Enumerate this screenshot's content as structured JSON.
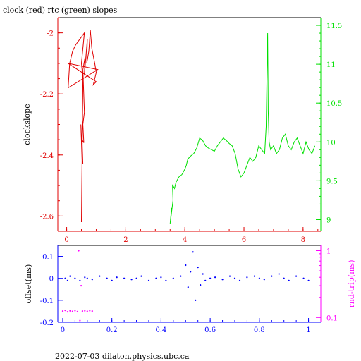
{
  "page": {
    "title": "clock (red) rtc (green) slopes",
    "footer": "2022-07-03 dilaton.physics.ubc.ca"
  },
  "chart_data": [
    {
      "type": "line",
      "title": "clock (red) rtc (green) slopes",
      "ylabel": "clockslope",
      "xlim": [
        -0.3,
        8.6
      ],
      "ylim": [
        -2.65,
        -1.95
      ],
      "y2lim": [
        8.85,
        11.6
      ],
      "xticks": [
        "0",
        "2",
        "4",
        "6",
        "8"
      ],
      "yticks": [
        "-2",
        "-2.2",
        "-2.4",
        "-2.6"
      ],
      "y2ticks": [
        "11.5",
        "11",
        "10.5",
        "10",
        "9.5",
        "9"
      ],
      "colors": {
        "clock": "#e00000",
        "rtc": "#00e000",
        "frame": "#000000"
      },
      "series": [
        {
          "name": "clock",
          "axis": "left",
          "x": [
            0.5,
            0.52,
            0.48,
            0.55,
            0.52,
            0.58,
            0.55,
            0.6,
            0.57,
            0.55,
            0.62,
            0.6,
            0.7,
            0.68,
            0.75,
            0.8,
            0.85,
            0.95,
            1.0,
            0.9,
            1.0,
            0.05,
            1.05,
            0.05,
            0.1,
            0.2,
            0.3,
            0.45,
            0.6,
            0.5,
            0.55,
            0.5
          ],
          "y": [
            -2.62,
            -2.42,
            -2.3,
            -2.43,
            -2.35,
            -2.36,
            -2.3,
            -2.26,
            -2.18,
            -2.12,
            -2.08,
            -2.14,
            -2.02,
            -2.1,
            -2.06,
            -1.99,
            -2.05,
            -2.1,
            -2.13,
            -2.17,
            -2.16,
            -2.1,
            -2.12,
            -2.18,
            -2.1,
            -2.06,
            -2.04,
            -2.02,
            -2.0,
            -2.1,
            -2.15,
            -2.62
          ]
        },
        {
          "name": "rtc",
          "axis": "right",
          "x": [
            3.5,
            3.55,
            3.52,
            3.6,
            3.58,
            3.65,
            3.7,
            3.8,
            3.9,
            4.0,
            4.05,
            4.1,
            4.2,
            4.3,
            4.4,
            4.5,
            4.6,
            4.7,
            4.8,
            4.9,
            5.0,
            5.1,
            5.2,
            5.3,
            5.4,
            5.5,
            5.6,
            5.7,
            5.8,
            5.9,
            6.0,
            6.1,
            6.2,
            6.3,
            6.4,
            6.5,
            6.6,
            6.7,
            6.75,
            6.8,
            6.82,
            6.85,
            6.9,
            7.0,
            7.1,
            7.2,
            7.3,
            7.4,
            7.5,
            7.6,
            7.7,
            7.8,
            7.9,
            8.0,
            8.1,
            8.2,
            8.3,
            8.4
          ],
          "y": [
            8.95,
            9.15,
            9.0,
            9.25,
            9.45,
            9.4,
            9.48,
            9.55,
            9.58,
            9.65,
            9.7,
            9.78,
            9.82,
            9.85,
            9.92,
            10.05,
            10.02,
            9.95,
            9.92,
            9.9,
            9.88,
            9.95,
            10.0,
            10.05,
            10.02,
            9.98,
            9.95,
            9.85,
            9.65,
            9.55,
            9.6,
            9.7,
            9.8,
            9.75,
            9.8,
            9.95,
            9.9,
            9.85,
            10.2,
            11.4,
            10.4,
            10.0,
            9.9,
            9.95,
            9.85,
            9.9,
            10.05,
            10.1,
            9.95,
            9.9,
            10.0,
            10.05,
            9.95,
            9.85,
            10.0,
            9.9,
            9.85,
            9.95
          ]
        }
      ]
    },
    {
      "type": "scatter",
      "ylabel": "offset(ms)",
      "y2label": "rnd-trip(ms)",
      "xlim": [
        -0.02,
        1.05
      ],
      "ylim": [
        -0.2,
        0.15
      ],
      "y2lim": [
        0.085,
        1.2
      ],
      "y2scale": "log",
      "xticks": [
        "0",
        "0.2",
        "0.4",
        "0.6",
        "0.8",
        "1"
      ],
      "yticks": [
        "0.1",
        "0",
        "-0.1",
        "-0.2"
      ],
      "y2ticks": [
        "1",
        "0.1"
      ],
      "colors": {
        "offset": "#0000ff",
        "rndtrip": "#ff00ff",
        "frame": "#000000"
      },
      "series": [
        {
          "name": "offset",
          "axis": "left",
          "x": [
            0.01,
            0.02,
            0.03,
            0.05,
            0.07,
            0.09,
            0.1,
            0.12,
            0.15,
            0.18,
            0.2,
            0.22,
            0.25,
            0.28,
            0.3,
            0.32,
            0.35,
            0.38,
            0.4,
            0.42,
            0.45,
            0.48,
            0.5,
            0.51,
            0.52,
            0.53,
            0.54,
            0.55,
            0.56,
            0.57,
            0.58,
            0.6,
            0.62,
            0.65,
            0.68,
            0.7,
            0.72,
            0.75,
            0.78,
            0.8,
            0.82,
            0.85,
            0.88,
            0.9,
            0.92,
            0.95,
            0.98,
            1.0
          ],
          "y": [
            0.0,
            -0.01,
            0.01,
            0.0,
            -0.01,
            0.005,
            0.0,
            -0.005,
            0.01,
            0.0,
            -0.01,
            0.005,
            0.0,
            -0.005,
            0.0,
            0.01,
            -0.01,
            0.0,
            0.005,
            -0.01,
            0.0,
            0.01,
            0.06,
            -0.04,
            0.03,
            0.12,
            -0.1,
            0.05,
            -0.03,
            0.02,
            -0.01,
            0.0,
            0.005,
            -0.005,
            0.01,
            0.0,
            -0.01,
            0.005,
            0.01,
            0.0,
            -0.005,
            0.01,
            0.02,
            0.0,
            -0.01,
            0.01,
            0.0,
            -0.01
          ]
        },
        {
          "name": "rndtrip",
          "axis": "right",
          "x": [
            0.0,
            0.01,
            0.02,
            0.03,
            0.04,
            0.05,
            0.06,
            0.065,
            0.07,
            0.075,
            0.08,
            0.09,
            0.1,
            0.11,
            0.12
          ],
          "y": [
            0.125,
            0.128,
            0.122,
            0.126,
            0.124,
            0.127,
            0.123,
            1.0,
            0.09,
            0.3,
            0.125,
            0.126,
            0.124,
            0.127,
            0.125
          ]
        }
      ]
    }
  ]
}
